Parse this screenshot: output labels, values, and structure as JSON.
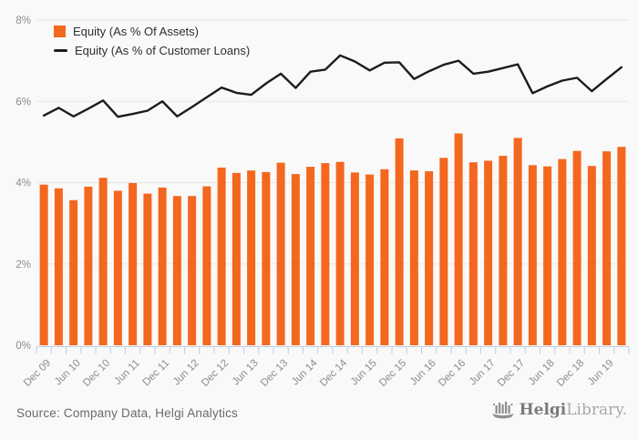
{
  "chart_data": {
    "type": "bar",
    "title": "",
    "xlabel": "",
    "ylabel": "",
    "ylim": [
      0,
      8
    ],
    "grid": "horizontal",
    "legend_position": "top-left",
    "y_ticks": [
      "0%",
      "2%",
      "4%",
      "6%",
      "8%"
    ],
    "categories": [
      "Dec 09",
      "Mar 10",
      "Jun 10",
      "Sep 10",
      "Dec 10",
      "Mar 11",
      "Jun 11",
      "Sep 11",
      "Dec 11",
      "Mar 12",
      "Jun 12",
      "Sep 12",
      "Dec 12",
      "Mar 13",
      "Jun 13",
      "Sep 13",
      "Dec 13",
      "Mar 14",
      "Jun 14",
      "Sep 14",
      "Dec 14",
      "Mar 15",
      "Jun 15",
      "Sep 15",
      "Dec 15",
      "Mar 16",
      "Jun 16",
      "Sep 16",
      "Dec 16",
      "Mar 17",
      "Jun 17",
      "Sep 17",
      "Dec 17",
      "Mar 18",
      "Jun 18",
      "Sep 18",
      "Dec 18",
      "Mar 19",
      "Jun 19",
      "Sep 19"
    ],
    "x_tick_labels_shown": [
      "Dec 09",
      "Jun 10",
      "Dec 10",
      "Jun 11",
      "Dec 11",
      "Jun 12",
      "Dec 12",
      "Jun 13",
      "Dec 13",
      "Jun 14",
      "Dec 14",
      "Jun 15",
      "Dec 15",
      "Jun 16",
      "Dec 16",
      "Jun 17",
      "Dec 17",
      "Jun 18",
      "Dec 18",
      "Jun 19"
    ],
    "series": [
      {
        "name": "Equity (As % Of Assets)",
        "type": "bar",
        "color": "#f4671e",
        "values": [
          3.95,
          3.86,
          3.57,
          3.9,
          4.12,
          3.8,
          3.99,
          3.73,
          3.88,
          3.67,
          3.67,
          3.91,
          4.37,
          4.24,
          4.3,
          4.26,
          4.49,
          4.21,
          4.39,
          4.48,
          4.51,
          4.25,
          4.2,
          4.33,
          5.09,
          4.3,
          4.28,
          4.61,
          5.21,
          4.5,
          4.54,
          4.66,
          5.1,
          4.43,
          4.4,
          4.58,
          4.78,
          4.41,
          4.77,
          4.88
        ]
      },
      {
        "name": "Equity (As % of Customer Loans)",
        "type": "line",
        "color": "#1c1c1c",
        "values": [
          5.65,
          5.84,
          5.63,
          5.82,
          6.02,
          5.62,
          5.69,
          5.77,
          6.0,
          5.63,
          5.86,
          6.1,
          6.34,
          6.21,
          6.16,
          6.44,
          6.68,
          6.33,
          6.73,
          6.78,
          7.13,
          6.98,
          6.76,
          6.95,
          6.96,
          6.55,
          6.74,
          6.9,
          7.0,
          6.68,
          6.73,
          6.82,
          6.91,
          6.2,
          6.37,
          6.51,
          6.58,
          6.25,
          6.55,
          6.84
        ]
      }
    ]
  },
  "footer": {
    "source_label": "Source: Company Data, Helgi Analytics",
    "logo_bold": "Helgi",
    "logo_light": "Library."
  },
  "colors": {
    "background": "#f9f9f9",
    "bar": "#f4671e",
    "line": "#1c1c1c",
    "grid": "#e7e7e7",
    "axis": "#c3cbe5",
    "axis_text": "#8c8c8c",
    "legend_text": "#2e2e2e",
    "source_text": "#6b6b6b",
    "logo_icon": "#8f8f8f"
  }
}
